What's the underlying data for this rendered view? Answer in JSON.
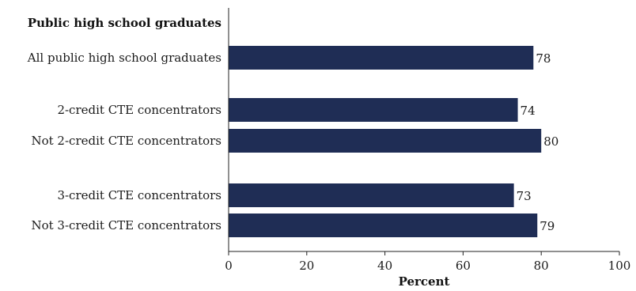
{
  "chart_data": {
    "type": "bar",
    "orientation": "horizontal",
    "group_heading": "Public high school graduates",
    "categories": [
      "All public high school graduates",
      "2-credit CTE concentrators",
      "Not 2-credit CTE concentrators",
      "3-credit CTE concentrators",
      "Not 3-credit CTE concentrators"
    ],
    "values": [
      78,
      74,
      80,
      73,
      79
    ],
    "xlabel": "Percent",
    "xlim": [
      0,
      100
    ],
    "xticks": [
      0,
      20,
      40,
      60,
      80,
      100
    ],
    "grid": false,
    "legend": "none",
    "bar_color": "#1f2d55"
  }
}
